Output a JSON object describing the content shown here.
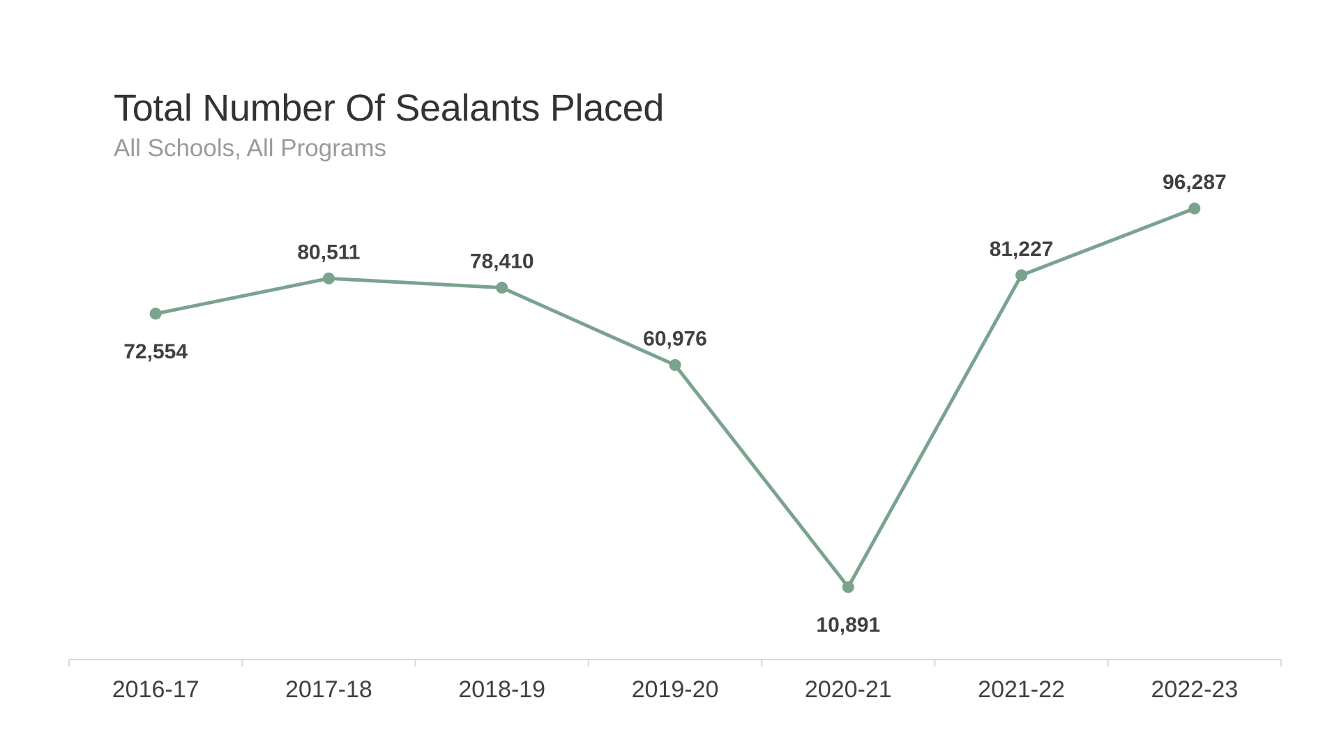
{
  "chart_data": {
    "type": "line",
    "title": "Total Number Of Sealants Placed",
    "subtitle": "All Schools, All Programs",
    "categories": [
      "2016-17",
      "2017-18",
      "2018-19",
      "2019-20",
      "2020-21",
      "2021-22",
      "2022-23"
    ],
    "values": [
      72554,
      80511,
      78410,
      60976,
      10891,
      81227,
      96287
    ],
    "data_labels": [
      "72,554",
      "80,511",
      "78,410",
      "60,976",
      "10,891",
      "81,227",
      "96,287"
    ],
    "xlabel": "",
    "ylabel": "",
    "ylim": [
      0,
      120000
    ],
    "grid": false,
    "legend": "none",
    "colors": {
      "line": "#7aa38e",
      "label": "#404040",
      "axis": "#d9d9d9",
      "tick_text": "#404040"
    }
  }
}
